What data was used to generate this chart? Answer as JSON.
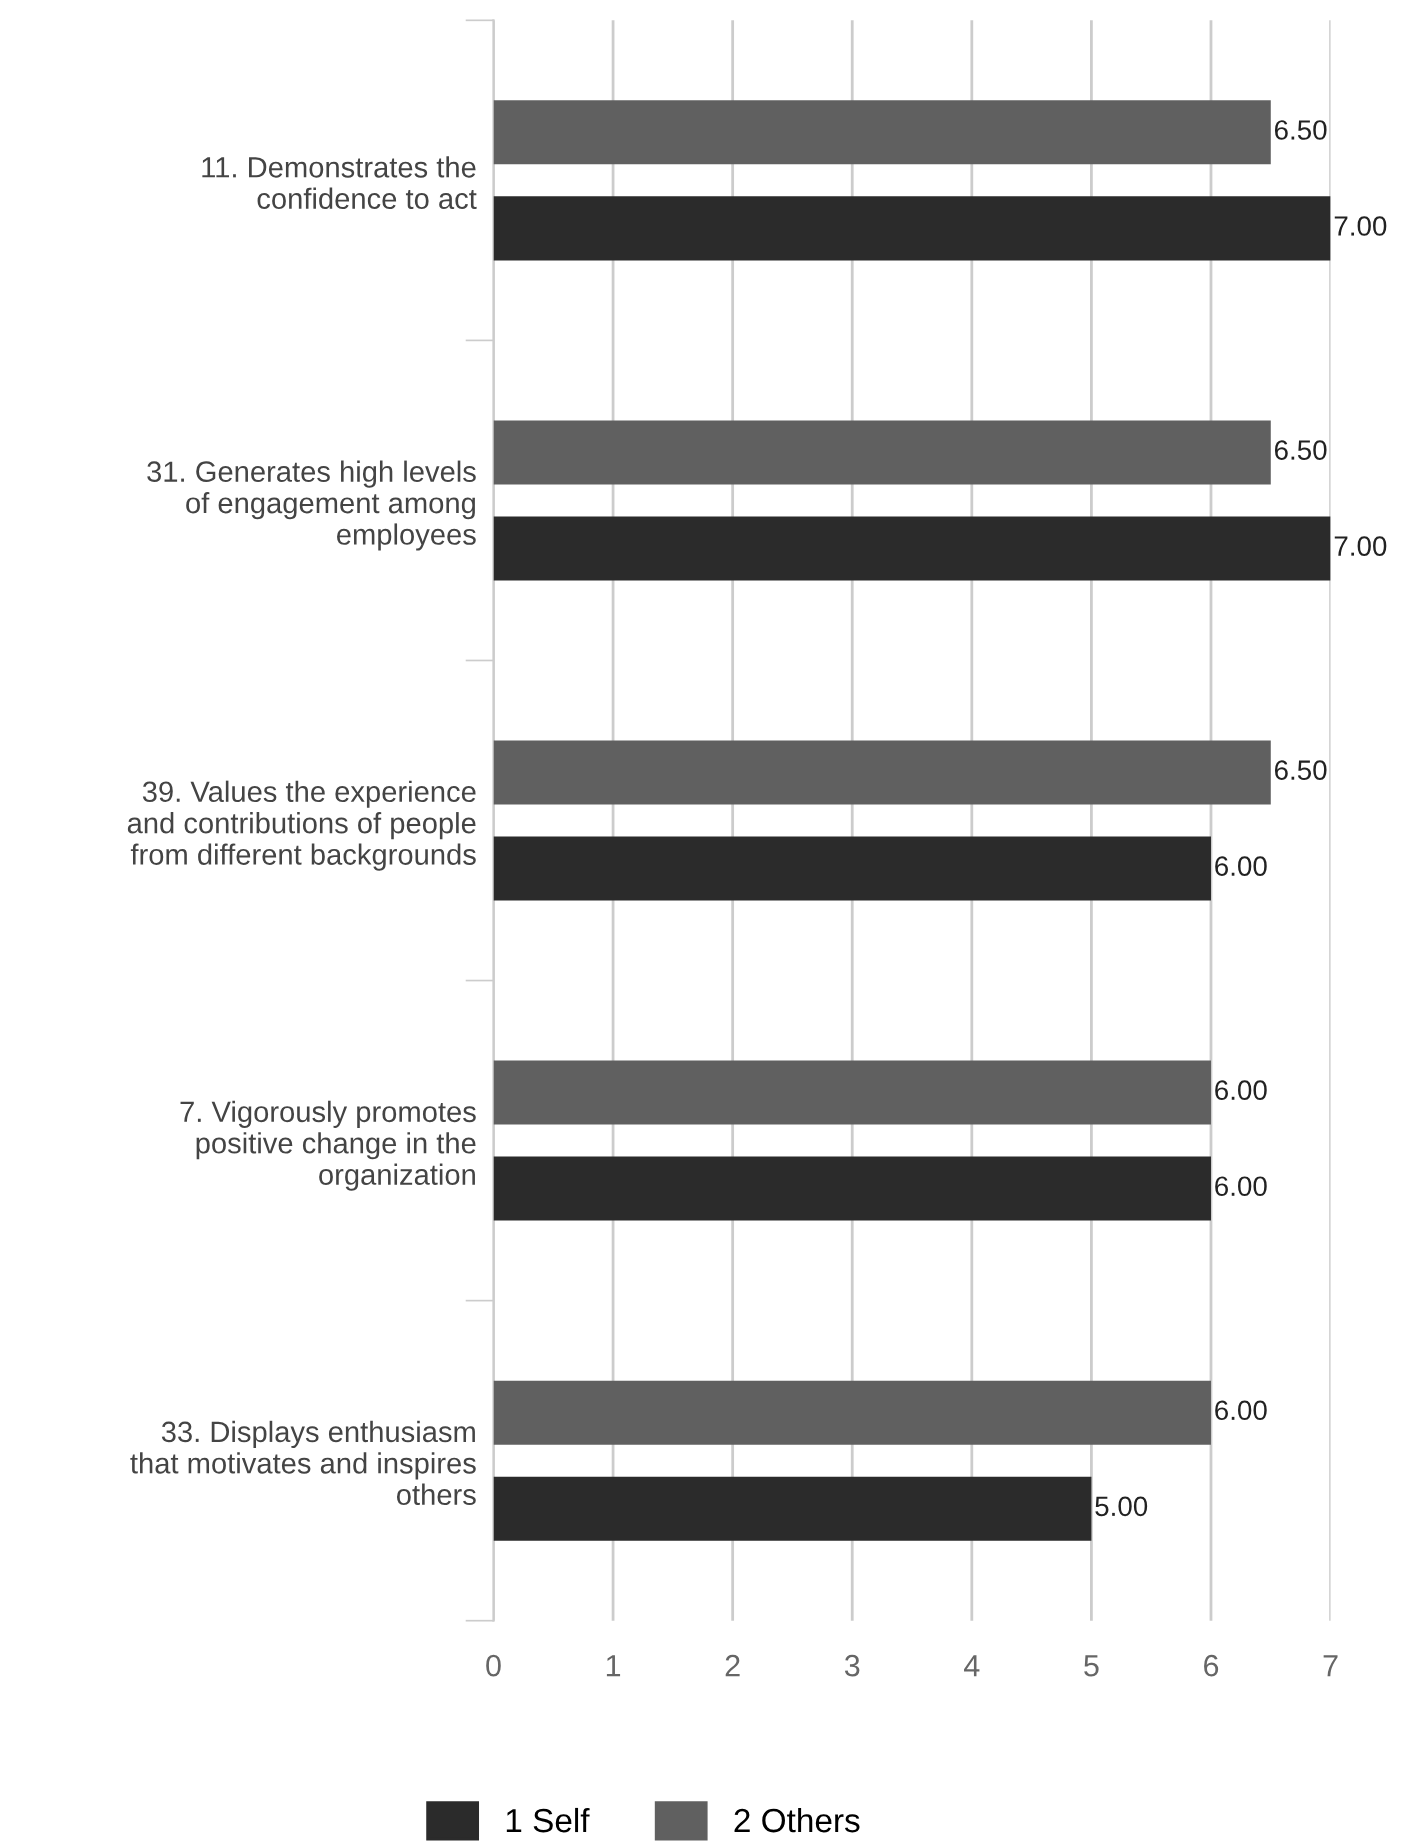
{
  "chart_data": {
    "type": "bar",
    "orientation": "horizontal",
    "categories": [
      "11. Demonstrates the\nconfidence to act",
      "31. Generates high levels\nof engagement among\nemployees",
      "39. Values the experience\nand contributions of people\nfrom different backgrounds",
      "7. Vigorously promotes\npositive change in the\norganization",
      "33. Displays enthusiasm\nthat motivates and inspires\nothers"
    ],
    "series": [
      {
        "name": "1 Self",
        "color": "#2b2b2b",
        "values": [
          7,
          7,
          6,
          6,
          5
        ],
        "value_labels": [
          "7.00",
          "7.00",
          "6.00",
          "6.00",
          "5.00"
        ]
      },
      {
        "name": "2 Others",
        "color": "#606060",
        "values": [
          6.5,
          6.5,
          6.5,
          6,
          6
        ],
        "value_labels": [
          "6.50",
          "6.50",
          "6.50",
          "6.00",
          "6.00"
        ]
      }
    ],
    "xlim": [
      0,
      7
    ],
    "xticks": [
      0,
      1,
      2,
      3,
      4,
      5,
      6,
      7
    ],
    "grid": "x",
    "legend": "bottom"
  }
}
